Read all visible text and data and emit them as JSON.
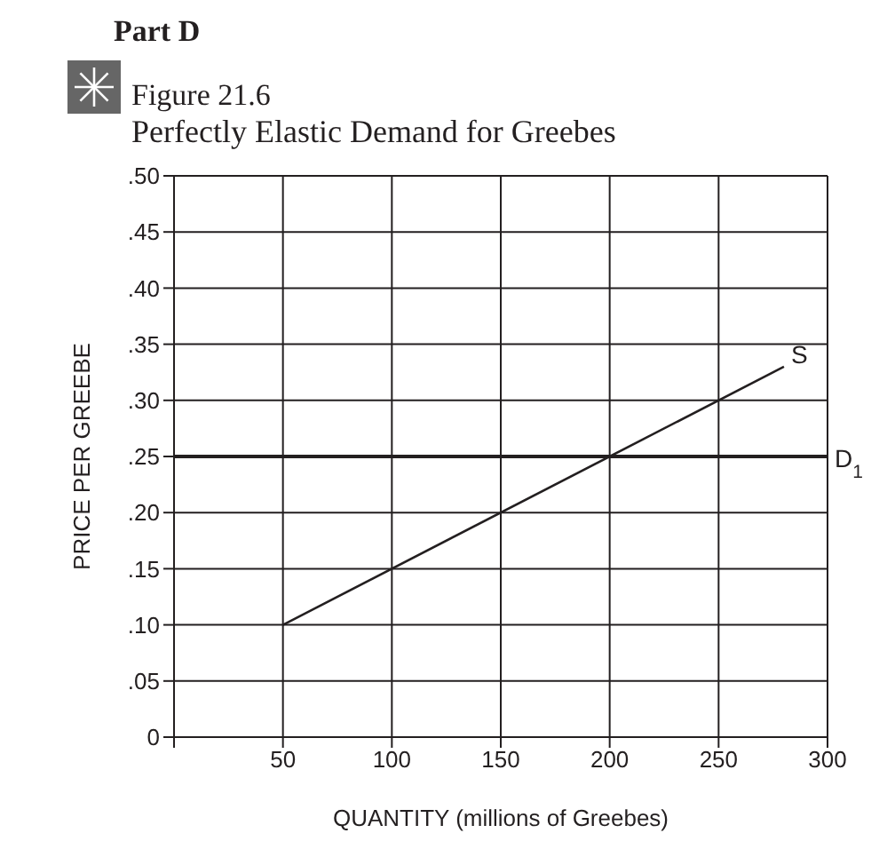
{
  "chart_data": {
    "type": "line",
    "title": "Perfectly Elastic Demand for Greebes",
    "annotations": [
      "Part D",
      "Figure 21.6"
    ],
    "xlabel": "QUANTITY (millions of Greebes)",
    "ylabel": "PRICE PER GREEBE",
    "series": [
      {
        "name": "S",
        "color": "#231f20",
        "x": [
          50,
          280
        ],
        "values": [
          0.1,
          0.33
        ]
      },
      {
        "name": "D$_{1}$",
        "color": "#231f20",
        "x": [
          0,
          300
        ],
        "values": [
          0.25,
          0.25
        ]
      }
    ],
    "xlim": [
      0,
      300
    ],
    "xticks": [
      {
        "value": 0,
        "label": null
      },
      50,
      100,
      150,
      200,
      250,
      300
    ],
    "ylim": [
      0,
      0.5
    ],
    "yticks": [
      0,
      {
        "value": 0.05,
        "label": ".05"
      },
      {
        "value": 0.1,
        "label": ".10"
      },
      {
        "value": 0.15,
        "label": ".15"
      },
      {
        "value": 0.2,
        "label": ".20"
      },
      {
        "value": 0.25,
        "label": ".25"
      },
      {
        "value": 0.3,
        "label": ".30"
      },
      {
        "value": 0.35,
        "label": ".35"
      },
      {
        "value": 0.4,
        "label": ".40"
      },
      {
        "value": 0.45,
        "label": ".45"
      },
      {
        "value": 0.5,
        "label": ".50"
      }
    ],
    "grid": true,
    "marker": "none",
    "line_style": "solid",
    "legend": false
  }
}
